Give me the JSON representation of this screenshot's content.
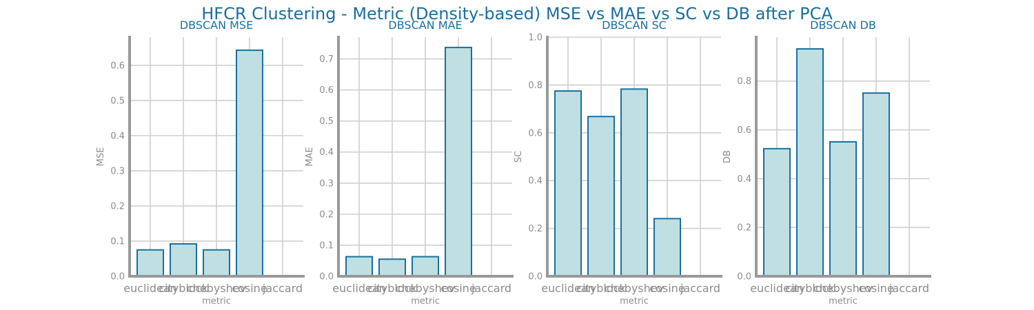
{
  "figure_title": "HFCR Clustering - Metric (Density-based) MSE vs MAE vs SC vs DB after PCA",
  "colors": {
    "bar_fill": "#bfdfe3",
    "bar_edge": "#1a6f9e",
    "title": "#1a6f9e",
    "grid": "#cfcfcf",
    "axis": "#999999",
    "tick": "#8c8c8c"
  },
  "chart_data": [
    {
      "type": "bar",
      "title": "DBSCAN MSE",
      "xlabel": "metric",
      "ylabel": "MSE",
      "categories": [
        "euclidean",
        "cityblock",
        "chebyshev",
        "cosine",
        "jaccard"
      ],
      "values": [
        0.075,
        0.092,
        0.075,
        0.643,
        null
      ],
      "ylim": [
        0,
        0.68
      ],
      "yticks": [
        0.0,
        0.1,
        0.2,
        0.3,
        0.4,
        0.5,
        0.6
      ],
      "ytick_labels": [
        "0.0",
        "0.1",
        "0.2",
        "0.3",
        "0.4",
        "0.5",
        "0.6"
      ],
      "grid": true
    },
    {
      "type": "bar",
      "title": "DBSCAN MAE",
      "xlabel": "metric",
      "ylabel": "MAE",
      "categories": [
        "euclidean",
        "cityblock",
        "chebyshev",
        "cosine",
        "jaccard"
      ],
      "values": [
        0.063,
        0.055,
        0.063,
        0.737,
        null
      ],
      "ylim": [
        0,
        0.77
      ],
      "yticks": [
        0.0,
        0.1,
        0.2,
        0.3,
        0.4,
        0.5,
        0.6,
        0.7
      ],
      "ytick_labels": [
        "0.0",
        "0.1",
        "0.2",
        "0.3",
        "0.4",
        "0.5",
        "0.6",
        "0.7"
      ],
      "grid": true
    },
    {
      "type": "bar",
      "title": "DBSCAN SC",
      "xlabel": "metric",
      "ylabel": "SC",
      "categories": [
        "euclidean",
        "cityblock",
        "chebyshev",
        "cosine",
        "jaccard"
      ],
      "values": [
        0.775,
        0.668,
        0.783,
        0.241,
        null
      ],
      "ylim": [
        0,
        1.0
      ],
      "yticks": [
        0.0,
        0.2,
        0.4,
        0.6,
        0.8,
        1.0
      ],
      "ytick_labels": [
        "0.0",
        "0.2",
        "0.4",
        "0.6",
        "0.8",
        "1.0"
      ],
      "grid": true
    },
    {
      "type": "bar",
      "title": "DBSCAN DB",
      "xlabel": "metric",
      "ylabel": "DB",
      "categories": [
        "euclidean",
        "cityblock",
        "chebyshev",
        "cosine",
        "jaccard"
      ],
      "values": [
        0.523,
        0.932,
        0.551,
        0.751,
        null
      ],
      "ylim": [
        0,
        0.98
      ],
      "yticks": [
        0.0,
        0.2,
        0.4,
        0.6,
        0.8
      ],
      "ytick_labels": [
        "0.0",
        "0.2",
        "0.4",
        "0.6",
        "0.8"
      ],
      "grid": true
    }
  ]
}
